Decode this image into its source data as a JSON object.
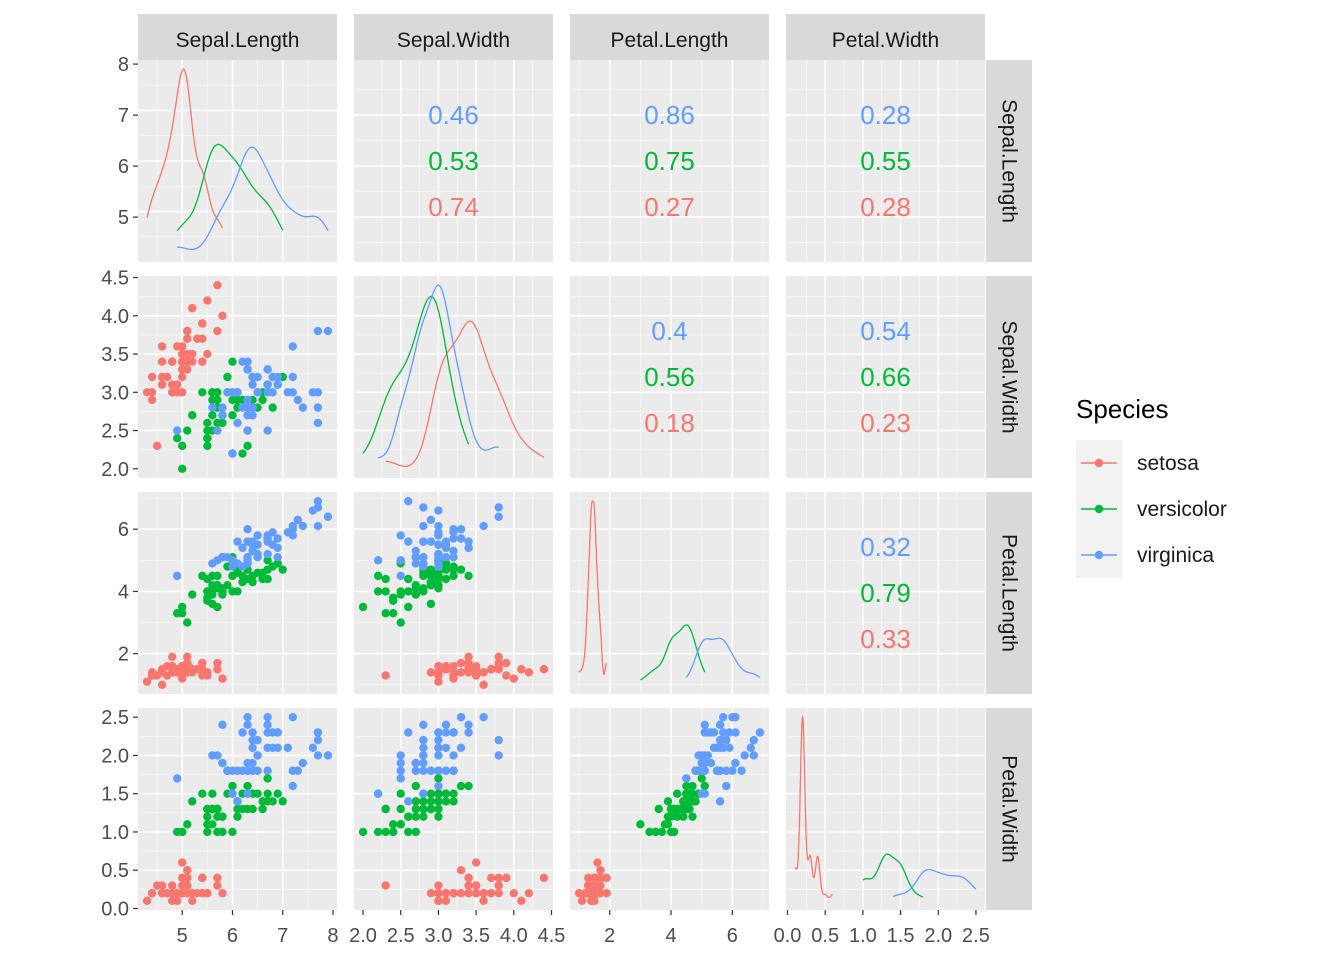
{
  "chart_data": {
    "type": "scatter",
    "variables": [
      "Sepal.Length",
      "Sepal.Width",
      "Petal.Length",
      "Petal.Width"
    ],
    "axis_ranges": {
      "Sepal.Length": [
        4.3,
        7.9
      ],
      "Sepal.Width": [
        2.0,
        4.4
      ],
      "Petal.Length": [
        1.0,
        6.9
      ],
      "Petal.Width": [
        0.1,
        2.5
      ]
    },
    "ticks": {
      "Sepal.Length": [
        [
          "5",
          "5"
        ],
        [
          "6",
          "6"
        ],
        [
          "7",
          "7"
        ],
        [
          "8",
          "8"
        ]
      ],
      "Sepal.Width": [
        [
          "2.0",
          "2.0"
        ],
        [
          "2.5",
          "2.5"
        ],
        [
          "3.0",
          "3.0"
        ],
        [
          "3.5",
          "3.5"
        ],
        [
          "4.0",
          "4.0"
        ],
        [
          "4.5",
          "4.5"
        ]
      ],
      "Petal.Length": [
        [
          "2",
          "2"
        ],
        [
          "4",
          "4"
        ],
        [
          "6",
          "6"
        ]
      ],
      "Petal.Width": [
        [
          "0.0",
          "0.0"
        ],
        [
          "0.5",
          "0.5"
        ],
        [
          "1.0",
          "1.0"
        ],
        [
          "1.5",
          "1.5"
        ],
        [
          "2.0",
          "2.0"
        ],
        [
          "2.5",
          "2.5"
        ]
      ]
    },
    "top_left_diag_ticks": [
      [
        "5",
        "5"
      ],
      [
        "6",
        "6"
      ],
      [
        "7",
        "7"
      ],
      [
        "8",
        "8"
      ]
    ],
    "legend": {
      "title": "Species",
      "placement": "right",
      "entries": [
        {
          "name": "setosa",
          "color": "#F8766D"
        },
        {
          "name": "versicolor",
          "color": "#00BA38"
        },
        {
          "name": "virginica",
          "color": "#619CFF"
        }
      ]
    },
    "correlations": [
      {
        "row": 0,
        "col": 1,
        "values": [
          "0.46",
          "0.53",
          "0.74"
        ]
      },
      {
        "row": 0,
        "col": 2,
        "values": [
          "0.86",
          "0.75",
          "0.27"
        ]
      },
      {
        "row": 0,
        "col": 3,
        "values": [
          "0.28",
          "0.55",
          "0.28"
        ]
      },
      {
        "row": 1,
        "col": 2,
        "values": [
          "0.4",
          "0.56",
          "0.18"
        ]
      },
      {
        "row": 1,
        "col": 3,
        "values": [
          "0.54",
          "0.66",
          "0.23"
        ]
      },
      {
        "row": 2,
        "col": 3,
        "values": [
          "0.32",
          "0.79",
          "0.33"
        ]
      }
    ],
    "correlation_order": [
      "virginica",
      "versicolor",
      "setosa"
    ],
    "species": [
      {
        "name": "setosa",
        "color": "#F8766D",
        "points": [
          [
            5.1,
            3.5,
            1.4,
            0.2
          ],
          [
            4.9,
            3.0,
            1.4,
            0.2
          ],
          [
            4.7,
            3.2,
            1.3,
            0.2
          ],
          [
            4.6,
            3.1,
            1.5,
            0.2
          ],
          [
            5.0,
            3.6,
            1.4,
            0.2
          ],
          [
            5.4,
            3.9,
            1.7,
            0.4
          ],
          [
            4.6,
            3.4,
            1.4,
            0.3
          ],
          [
            5.0,
            3.4,
            1.5,
            0.2
          ],
          [
            4.4,
            2.9,
            1.4,
            0.2
          ],
          [
            4.9,
            3.1,
            1.5,
            0.1
          ],
          [
            5.4,
            3.7,
            1.5,
            0.2
          ],
          [
            4.8,
            3.4,
            1.6,
            0.2
          ],
          [
            4.8,
            3.0,
            1.4,
            0.1
          ],
          [
            4.3,
            3.0,
            1.1,
            0.1
          ],
          [
            5.8,
            4.0,
            1.2,
            0.2
          ],
          [
            5.7,
            4.4,
            1.5,
            0.4
          ],
          [
            5.4,
            3.9,
            1.3,
            0.4
          ],
          [
            5.1,
            3.5,
            1.4,
            0.3
          ],
          [
            5.7,
            3.8,
            1.7,
            0.3
          ],
          [
            5.1,
            3.8,
            1.5,
            0.3
          ],
          [
            5.4,
            3.4,
            1.7,
            0.2
          ],
          [
            5.1,
            3.7,
            1.5,
            0.4
          ],
          [
            4.6,
            3.6,
            1.0,
            0.2
          ],
          [
            5.1,
            3.3,
            1.7,
            0.5
          ],
          [
            4.8,
            3.4,
            1.9,
            0.2
          ],
          [
            5.0,
            3.0,
            1.6,
            0.2
          ],
          [
            5.0,
            3.4,
            1.6,
            0.4
          ],
          [
            5.2,
            3.5,
            1.5,
            0.2
          ],
          [
            5.2,
            3.4,
            1.4,
            0.2
          ],
          [
            4.7,
            3.2,
            1.6,
            0.2
          ],
          [
            4.8,
            3.1,
            1.6,
            0.2
          ],
          [
            5.4,
            3.4,
            1.5,
            0.4
          ],
          [
            5.2,
            4.1,
            1.5,
            0.1
          ],
          [
            5.5,
            4.2,
            1.4,
            0.2
          ],
          [
            4.9,
            3.1,
            1.5,
            0.2
          ],
          [
            5.0,
            3.2,
            1.2,
            0.2
          ],
          [
            5.5,
            3.5,
            1.3,
            0.2
          ],
          [
            4.9,
            3.6,
            1.4,
            0.1
          ],
          [
            4.4,
            3.0,
            1.3,
            0.2
          ],
          [
            5.1,
            3.4,
            1.5,
            0.2
          ],
          [
            5.0,
            3.5,
            1.3,
            0.3
          ],
          [
            4.5,
            2.3,
            1.3,
            0.3
          ],
          [
            4.4,
            3.2,
            1.3,
            0.2
          ],
          [
            5.0,
            3.5,
            1.6,
            0.6
          ],
          [
            5.1,
            3.8,
            1.9,
            0.4
          ],
          [
            4.8,
            3.0,
            1.4,
            0.3
          ],
          [
            5.1,
            3.8,
            1.6,
            0.2
          ],
          [
            4.6,
            3.2,
            1.4,
            0.2
          ],
          [
            5.3,
            3.7,
            1.5,
            0.2
          ],
          [
            5.0,
            3.3,
            1.4,
            0.2
          ]
        ]
      },
      {
        "name": "versicolor",
        "color": "#00BA38",
        "points": [
          [
            7.0,
            3.2,
            4.7,
            1.4
          ],
          [
            6.4,
            3.2,
            4.5,
            1.5
          ],
          [
            6.9,
            3.1,
            4.9,
            1.5
          ],
          [
            5.5,
            2.3,
            4.0,
            1.3
          ],
          [
            6.5,
            2.8,
            4.6,
            1.5
          ],
          [
            5.7,
            2.8,
            4.5,
            1.3
          ],
          [
            6.3,
            3.3,
            4.7,
            1.6
          ],
          [
            4.9,
            2.4,
            3.3,
            1.0
          ],
          [
            6.6,
            2.9,
            4.6,
            1.3
          ],
          [
            5.2,
            2.7,
            3.9,
            1.4
          ],
          [
            5.0,
            2.0,
            3.5,
            1.0
          ],
          [
            5.9,
            3.0,
            4.2,
            1.5
          ],
          [
            6.0,
            2.2,
            4.0,
            1.0
          ],
          [
            6.1,
            2.9,
            4.7,
            1.4
          ],
          [
            5.6,
            2.9,
            3.6,
            1.3
          ],
          [
            6.7,
            3.1,
            4.4,
            1.4
          ],
          [
            5.6,
            3.0,
            4.5,
            1.5
          ],
          [
            5.8,
            2.7,
            4.1,
            1.0
          ],
          [
            6.2,
            2.2,
            4.5,
            1.5
          ],
          [
            5.6,
            2.5,
            3.9,
            1.1
          ],
          [
            5.9,
            3.2,
            4.8,
            1.8
          ],
          [
            6.1,
            2.8,
            4.0,
            1.3
          ],
          [
            6.3,
            2.5,
            4.9,
            1.5
          ],
          [
            6.1,
            2.8,
            4.7,
            1.2
          ],
          [
            6.4,
            2.9,
            4.3,
            1.3
          ],
          [
            6.6,
            3.0,
            4.4,
            1.4
          ],
          [
            6.8,
            2.8,
            4.8,
            1.4
          ],
          [
            6.7,
            3.0,
            5.0,
            1.7
          ],
          [
            6.0,
            2.9,
            4.5,
            1.5
          ],
          [
            5.7,
            2.6,
            3.5,
            1.0
          ],
          [
            5.5,
            2.4,
            3.8,
            1.1
          ],
          [
            5.5,
            2.4,
            3.7,
            1.0
          ],
          [
            5.8,
            2.7,
            3.9,
            1.2
          ],
          [
            6.0,
            2.7,
            5.1,
            1.6
          ],
          [
            5.4,
            3.0,
            4.5,
            1.5
          ],
          [
            6.0,
            3.4,
            4.5,
            1.6
          ],
          [
            6.7,
            3.1,
            4.7,
            1.5
          ],
          [
            6.3,
            2.3,
            4.4,
            1.3
          ],
          [
            5.6,
            3.0,
            4.1,
            1.3
          ],
          [
            5.5,
            2.5,
            4.0,
            1.3
          ],
          [
            5.5,
            2.6,
            4.4,
            1.2
          ],
          [
            6.1,
            3.0,
            4.6,
            1.4
          ],
          [
            5.8,
            2.6,
            4.0,
            1.2
          ],
          [
            5.0,
            2.3,
            3.3,
            1.0
          ],
          [
            5.6,
            2.7,
            4.2,
            1.3
          ],
          [
            5.7,
            3.0,
            4.2,
            1.2
          ],
          [
            5.7,
            2.9,
            4.2,
            1.3
          ],
          [
            6.2,
            2.9,
            4.3,
            1.3
          ],
          [
            5.1,
            2.5,
            3.0,
            1.1
          ],
          [
            5.7,
            2.8,
            4.1,
            1.3
          ]
        ]
      },
      {
        "name": "virginica",
        "color": "#619CFF",
        "points": [
          [
            6.3,
            3.3,
            6.0,
            2.5
          ],
          [
            5.8,
            2.7,
            5.1,
            1.9
          ],
          [
            7.1,
            3.0,
            5.9,
            2.1
          ],
          [
            6.3,
            2.9,
            5.6,
            1.8
          ],
          [
            6.5,
            3.0,
            5.8,
            2.2
          ],
          [
            7.6,
            3.0,
            6.6,
            2.1
          ],
          [
            4.9,
            2.5,
            4.5,
            1.7
          ],
          [
            7.3,
            2.9,
            6.3,
            1.8
          ],
          [
            6.7,
            2.5,
            5.8,
            1.8
          ],
          [
            7.2,
            3.6,
            6.1,
            2.5
          ],
          [
            6.5,
            3.2,
            5.1,
            2.0
          ],
          [
            6.4,
            2.7,
            5.3,
            1.9
          ],
          [
            6.8,
            3.0,
            5.5,
            2.1
          ],
          [
            5.7,
            2.5,
            5.0,
            2.0
          ],
          [
            5.8,
            2.8,
            5.1,
            2.4
          ],
          [
            6.4,
            3.2,
            5.3,
            2.3
          ],
          [
            6.5,
            3.0,
            5.5,
            1.8
          ],
          [
            7.7,
            3.8,
            6.7,
            2.2
          ],
          [
            7.7,
            2.6,
            6.9,
            2.3
          ],
          [
            6.0,
            2.2,
            5.0,
            1.5
          ],
          [
            6.9,
            3.2,
            5.7,
            2.3
          ],
          [
            5.6,
            2.8,
            4.9,
            2.0
          ],
          [
            7.7,
            2.8,
            6.7,
            2.0
          ],
          [
            6.3,
            2.7,
            4.9,
            1.8
          ],
          [
            6.7,
            3.3,
            5.7,
            2.1
          ],
          [
            7.2,
            3.2,
            6.0,
            1.8
          ],
          [
            6.2,
            2.8,
            4.8,
            1.8
          ],
          [
            6.1,
            3.0,
            4.9,
            1.8
          ],
          [
            6.4,
            2.8,
            5.6,
            2.1
          ],
          [
            7.2,
            3.0,
            5.8,
            1.6
          ],
          [
            7.4,
            2.8,
            6.1,
            1.9
          ],
          [
            7.9,
            3.8,
            6.4,
            2.0
          ],
          [
            6.4,
            2.8,
            5.6,
            2.2
          ],
          [
            6.3,
            2.8,
            5.1,
            1.5
          ],
          [
            6.1,
            2.6,
            5.6,
            1.4
          ],
          [
            7.7,
            3.0,
            6.1,
            2.3
          ],
          [
            6.3,
            3.4,
            5.6,
            2.4
          ],
          [
            6.4,
            3.1,
            5.5,
            1.8
          ],
          [
            6.0,
            3.0,
            4.8,
            1.8
          ],
          [
            6.9,
            3.1,
            5.4,
            2.1
          ],
          [
            6.7,
            3.1,
            5.6,
            2.4
          ],
          [
            6.9,
            3.1,
            5.1,
            2.3
          ],
          [
            5.8,
            2.7,
            5.1,
            1.9
          ],
          [
            6.8,
            3.2,
            5.9,
            2.3
          ],
          [
            6.7,
            3.3,
            5.7,
            2.5
          ],
          [
            6.7,
            3.0,
            5.2,
            2.3
          ],
          [
            6.3,
            2.5,
            5.0,
            1.9
          ],
          [
            6.5,
            3.0,
            5.2,
            2.0
          ],
          [
            6.2,
            3.4,
            5.4,
            2.3
          ],
          [
            5.9,
            3.0,
            5.1,
            1.8
          ]
        ]
      }
    ]
  }
}
